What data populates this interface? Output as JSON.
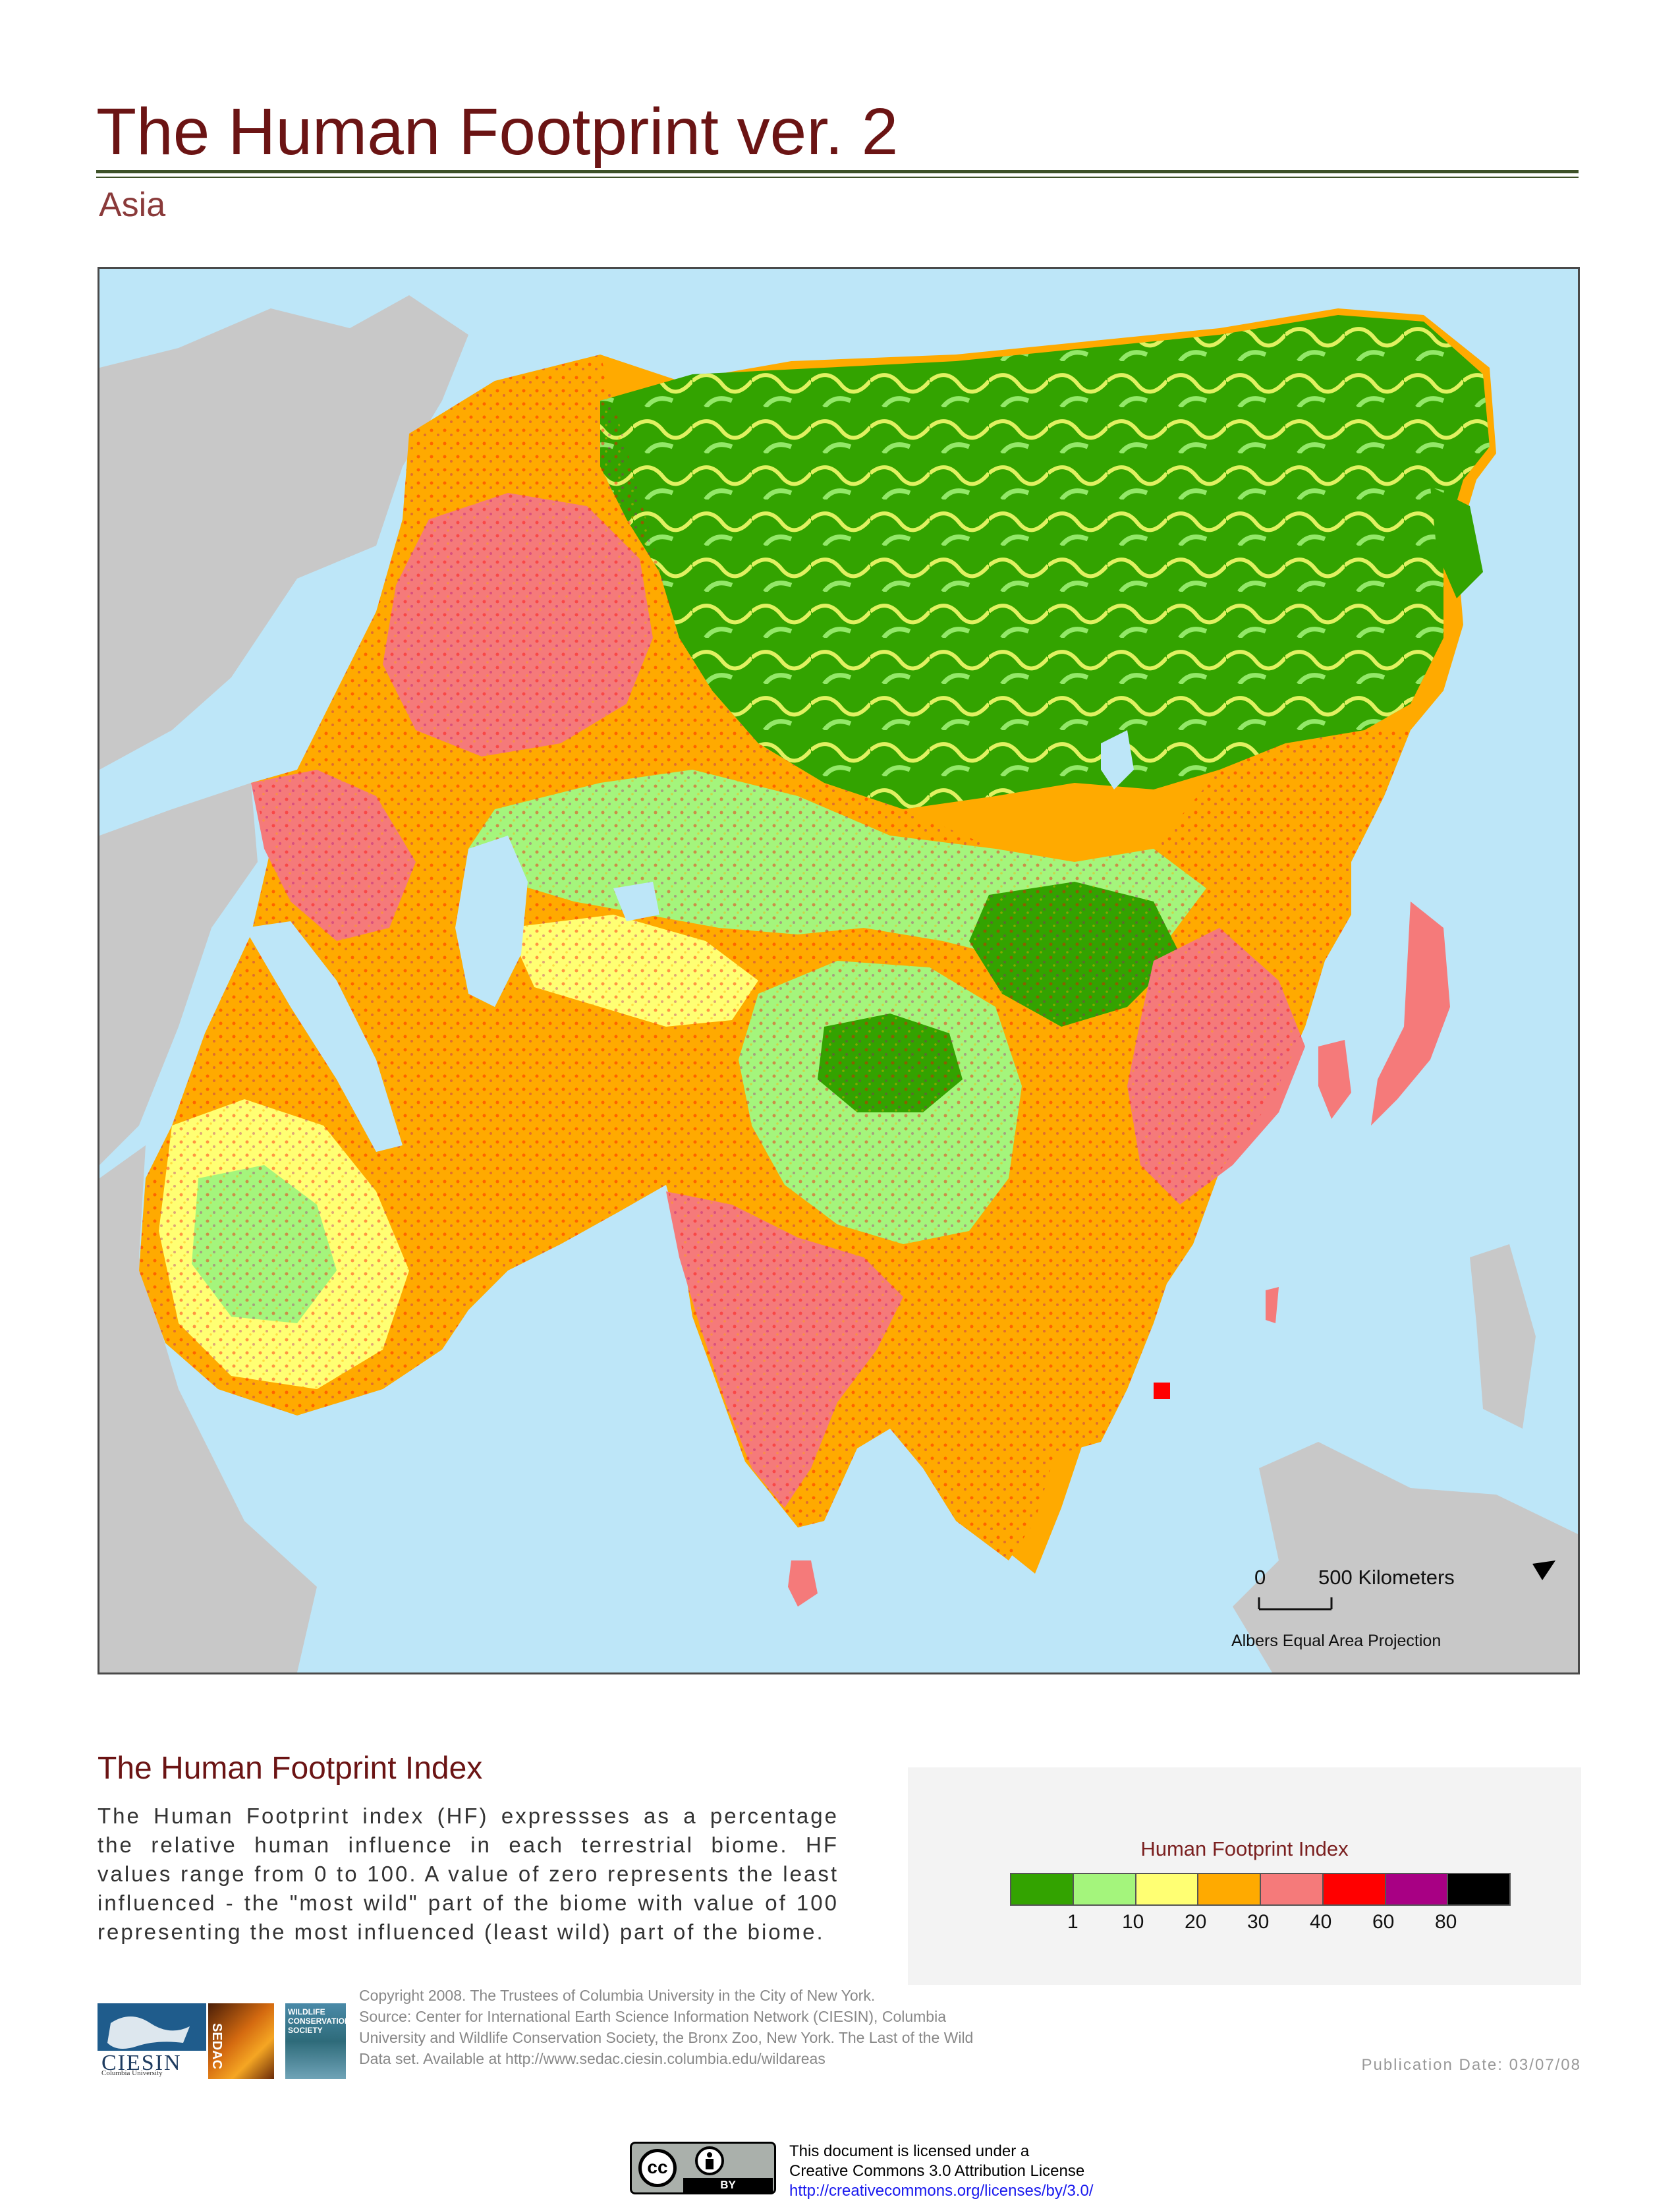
{
  "header": {
    "title": "The Human Footprint ver. 2",
    "subtitle": "Asia"
  },
  "map": {
    "scale_bar": {
      "zero": "0",
      "distance": "500 Kilometers"
    },
    "projection": "Albers Equal Area Projection",
    "colors": {
      "ocean": "#bde6f8",
      "other_land": "#c8c8c8",
      "hf_1": "#33a300",
      "hf_10": "#a4f57c",
      "hf_20": "#ffff73",
      "hf_30": "#ffaa00",
      "hf_40": "#f57a7a",
      "hf_60": "#ff0000",
      "hf_80": "#a80084",
      "hf_100": "#000000"
    }
  },
  "index_section": {
    "heading": "The Human Footprint Index",
    "description": "The Human Footprint index (HF) expressses as a percentage the relative human influence in each terrestrial biome. HF values range from 0 to 100. A value of zero represents the least influenced - the \"most wild\" part of the biome with value of 100 representing the most influenced (least wild) part of the biome."
  },
  "legend": {
    "title": "Human Footprint Index",
    "swatches": [
      "#33a300",
      "#a4f57c",
      "#ffff73",
      "#ffaa00",
      "#f57a7a",
      "#ff0000",
      "#a80084",
      "#000000"
    ],
    "ticks": [
      "1",
      "10",
      "20",
      "30",
      "40",
      "60",
      "80"
    ]
  },
  "footer": {
    "logos": [
      "CIESIN",
      "Columbia University",
      "SEDAC",
      "WILDLIFE CONSERVATION SOCIETY"
    ],
    "copyright": "Copyright 2008. The Trustees of Columbia University in the City of New York.",
    "source": "Source: Center for International Earth Science Information Network (CIESIN), Columbia University and Wildlife Conservation Society, the Bronx Zoo, New York. The Last of the Wild Data set. Available at http://www.sedac.ciesin.columbia.edu/wildareas",
    "publication_date": "Publication Date: 03/07/08",
    "license_line1": "This document is licensed under a",
    "license_line2": "Creative Commons 3.0 Attribution License",
    "license_url": "http://creativecommons.org/licenses/by/3.0/",
    "cc_badge": {
      "cc": "cc",
      "by": "BY"
    }
  }
}
